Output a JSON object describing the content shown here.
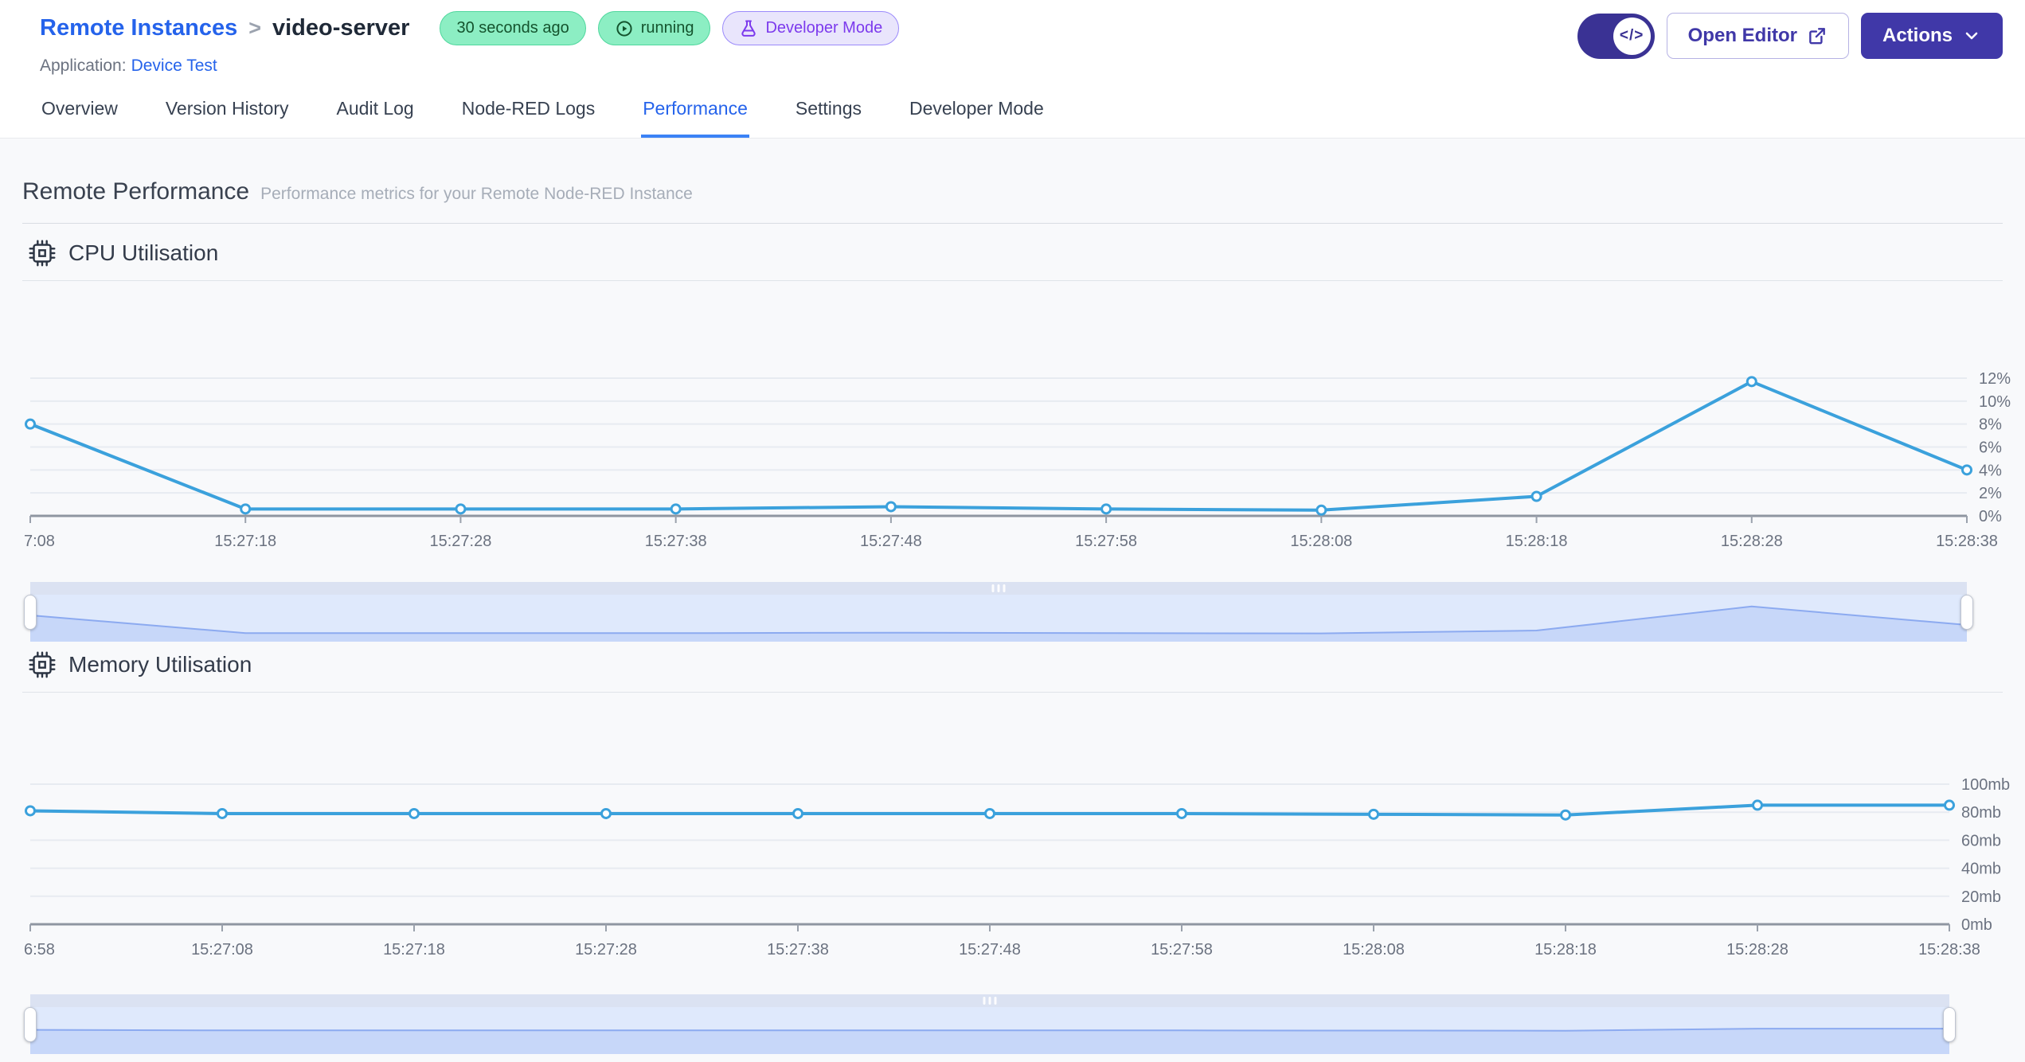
{
  "header": {
    "breadcrumb": {
      "parent": "Remote Instances",
      "separator": ">",
      "current": "video-server"
    },
    "badges": [
      {
        "label": "30 seconds ago",
        "type": "green",
        "icon": null
      },
      {
        "label": "running",
        "type": "green",
        "icon": "play-circle"
      },
      {
        "label": "Developer Mode",
        "type": "purple",
        "icon": "flask"
      }
    ],
    "application_label": "Application:",
    "application_name": "Device Test",
    "dev_toggle_icon": "</>",
    "open_editor_label": "Open Editor",
    "actions_label": "Actions"
  },
  "tabs": [
    {
      "label": "Overview",
      "active": false
    },
    {
      "label": "Version History",
      "active": false
    },
    {
      "label": "Audit Log",
      "active": false
    },
    {
      "label": "Node-RED Logs",
      "active": false
    },
    {
      "label": "Performance",
      "active": true
    },
    {
      "label": "Settings",
      "active": false
    },
    {
      "label": "Developer Mode",
      "active": false
    }
  ],
  "page": {
    "title": "Remote Performance",
    "subtitle": "Performance metrics for your Remote Node-RED Instance"
  },
  "colors": {
    "accent_blue": "#2563eb",
    "indigo_button": "#4038a8",
    "badge_green_bg": "#8ceec3",
    "badge_purple_bg": "#e9e5fc",
    "chart_line": "#3ba1dc",
    "brush_fill": "#c7d7f9",
    "brush_line": "#8caaf0"
  },
  "chart_data": [
    {
      "type": "line",
      "title": "CPU Utilisation",
      "x_tick_labels": [
        "7:08",
        "15:27:18",
        "15:27:28",
        "15:27:38",
        "15:27:48",
        "15:27:58",
        "15:28:08",
        "15:28:18",
        "15:28:28",
        "15:28:38"
      ],
      "values": [
        8,
        0.6,
        0.6,
        0.6,
        0.8,
        0.6,
        0.5,
        1.7,
        11.7,
        4
      ],
      "y_ticks": [
        0,
        2,
        4,
        6,
        8,
        10,
        12
      ],
      "y_tick_labels": [
        "0%",
        "2%",
        "4%",
        "6%",
        "8%",
        "10%",
        "12%"
      ],
      "ylim": [
        0,
        13
      ],
      "grid": true,
      "legend": false,
      "line_color": "#3ba1dc"
    },
    {
      "type": "line",
      "title": "Memory Utilisation",
      "x_tick_labels": [
        "6:58",
        "15:27:08",
        "15:27:18",
        "15:27:28",
        "15:27:38",
        "15:27:48",
        "15:27:58",
        "15:28:08",
        "15:28:18",
        "15:28:28",
        "15:28:38"
      ],
      "values": [
        81,
        79,
        79,
        79,
        79,
        79,
        79,
        78.5,
        78,
        85,
        85
      ],
      "y_ticks": [
        0,
        20,
        40,
        60,
        80,
        100
      ],
      "y_tick_labels": [
        "0mb",
        "20mb",
        "40mb",
        "60mb",
        "80mb",
        "100mb"
      ],
      "ylim": [
        0,
        110
      ],
      "grid": true,
      "legend": false,
      "line_color": "#3ba1dc"
    }
  ]
}
